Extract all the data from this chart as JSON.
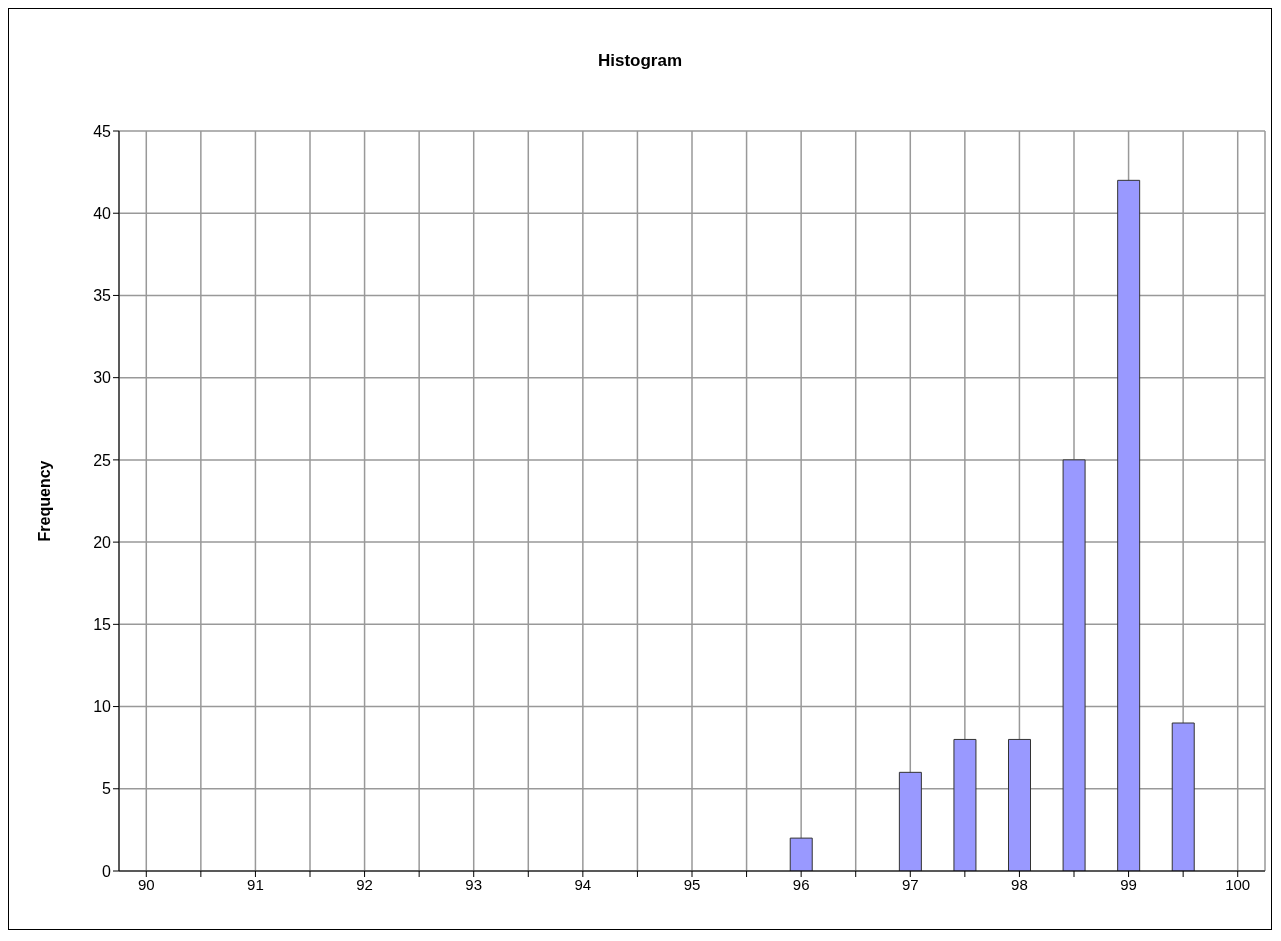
{
  "chart_data": {
    "type": "bar",
    "title": "Histogram",
    "ylabel": "Frequency",
    "categories": [
      "90",
      null,
      "91",
      null,
      "92",
      null,
      "93",
      null,
      "94",
      null,
      "95",
      null,
      "96",
      null,
      "97",
      null,
      "98",
      null,
      "99",
      null,
      "100"
    ],
    "values": [
      0,
      0,
      0,
      0,
      0,
      0,
      0,
      0,
      0,
      0,
      0,
      0,
      2,
      0,
      6,
      8,
      8,
      25,
      42,
      9,
      0
    ],
    "color": "#9999ff",
    "ylim": [
      0,
      45
    ],
    "yticks": [
      0,
      5,
      10,
      15,
      20,
      25,
      30,
      35,
      40,
      45
    ],
    "grid": true
  }
}
